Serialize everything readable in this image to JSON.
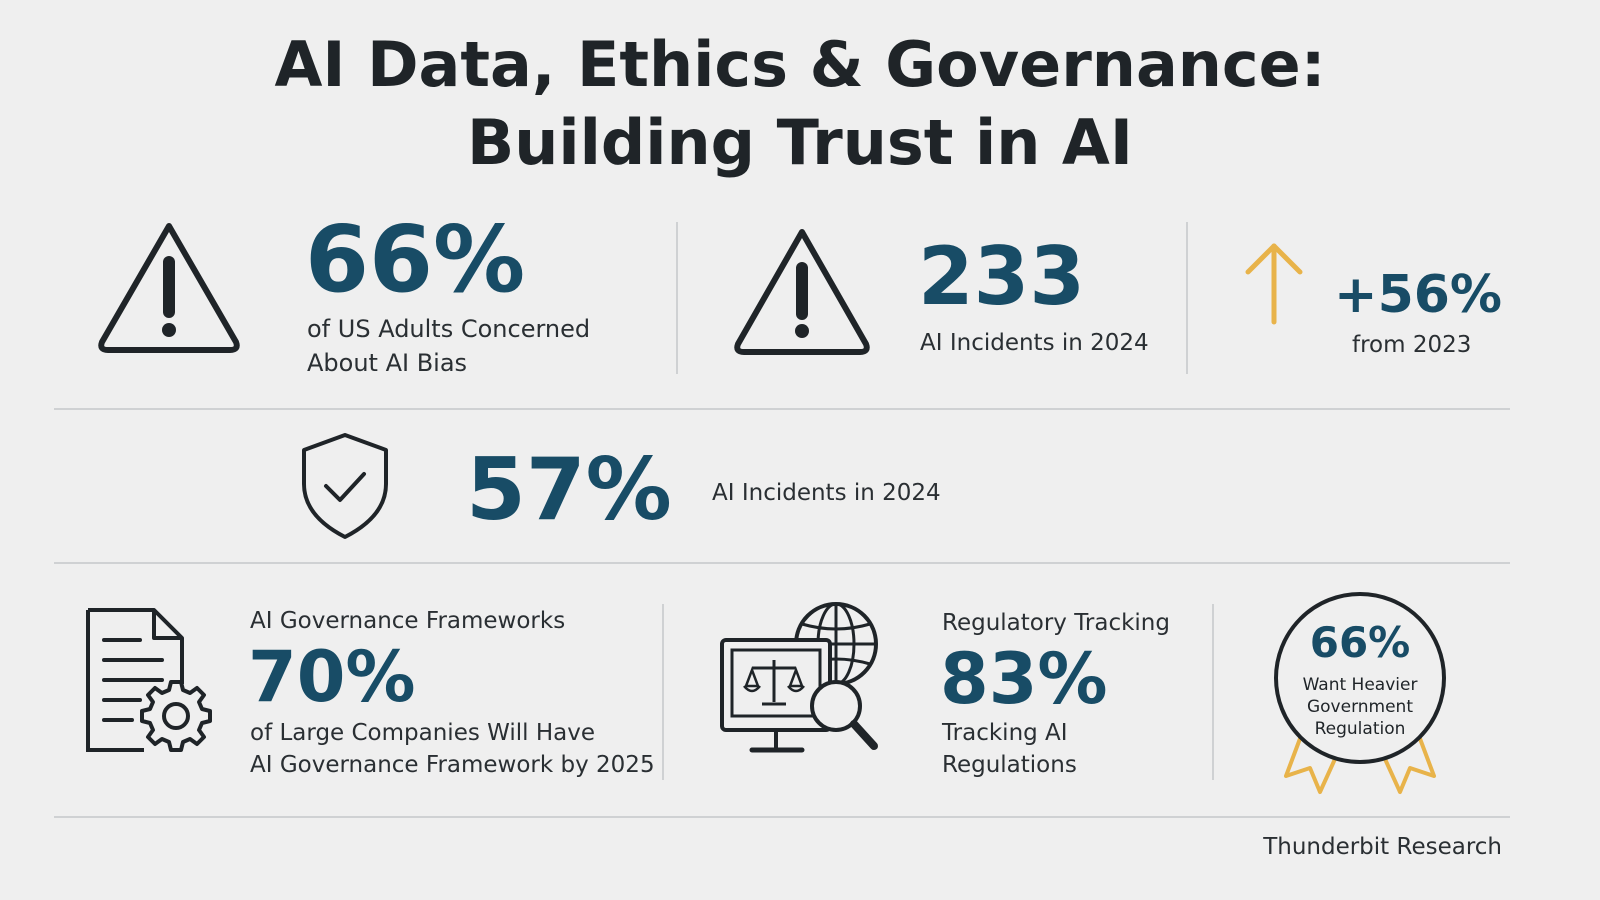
{
  "title": {
    "line1": "AI Data, Ethics & Governance:",
    "line2": "Building Trust in AI"
  },
  "row1": {
    "bias": {
      "value": "66%",
      "line1": "of US Adults Concerned",
      "line2": "About AI Bias",
      "icon": "warning-icon"
    },
    "incidents": {
      "value": "233",
      "label": "AI Incidents in 2024",
      "icon": "warning-icon"
    },
    "growth": {
      "value": "+56%",
      "label": "from 2023",
      "icon": "arrow-up-icon",
      "icon_color": "#e8b34a"
    }
  },
  "row2": {
    "stat": {
      "value": "57%",
      "label": "AI Incidents in 2024",
      "icon": "shield-check-icon"
    }
  },
  "row3": {
    "frameworks": {
      "heading": "AI Governance Frameworks",
      "value": "70%",
      "line1": "of Large Companies Will Have",
      "line2": "AI Governance Framework by 2025",
      "icon": "document-gear-icon"
    },
    "tracking": {
      "heading": "Regulatory Tracking",
      "value": "83%",
      "line1": "Tracking AI",
      "line2": "Regulations",
      "icon": "monitor-scales-globe-icon"
    },
    "regulation": {
      "value": "66%",
      "line1": "Want Heavier",
      "line2": "Government",
      "line3": "Regulation",
      "icon": "award-badge-icon",
      "ribbon_color": "#e8b34a"
    }
  },
  "footer": {
    "source": "Thunderbit Research"
  },
  "colors": {
    "accent": "#184c66",
    "background": "#efefef",
    "gold": "#e8b34a",
    "text": "#1f2428"
  }
}
